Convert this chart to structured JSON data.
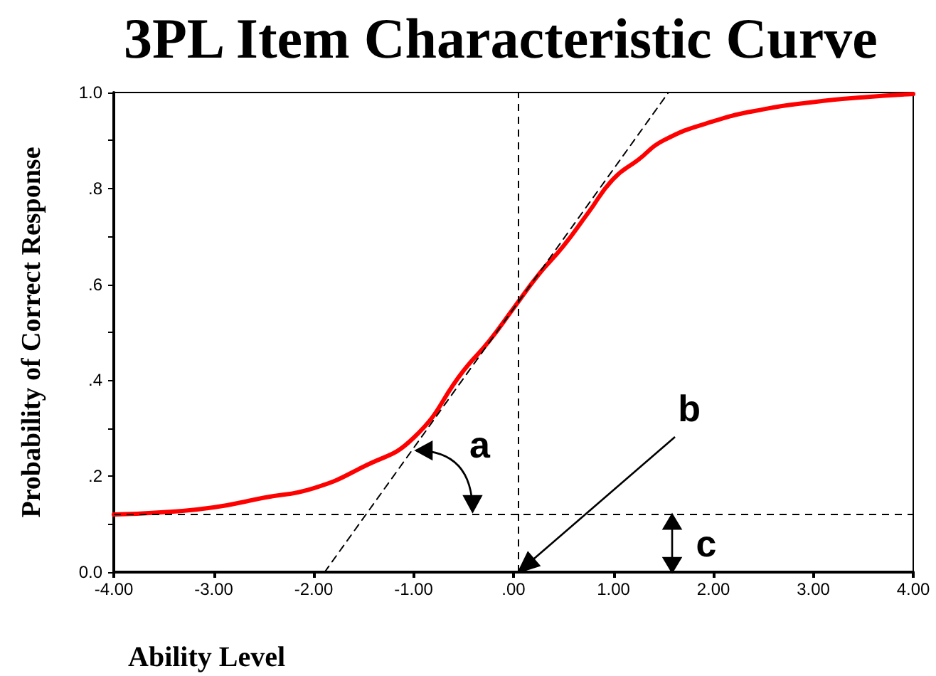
{
  "chart_data": {
    "type": "line",
    "title": "3PL Item Characteristic Curve",
    "xlabel": "Ability Level",
    "ylabel": "Probability of Correct Response",
    "series": [
      {
        "type": "line",
        "color": "#ff0000",
        "x": [
          -4,
          -3.5,
          -3,
          -2.5,
          -2,
          -1.5,
          -1,
          -0.5,
          -0.25,
          0,
          0.25,
          0.5,
          0.75,
          1,
          1.25,
          1.5,
          2,
          2.5,
          3,
          3.5,
          4
        ],
        "values": [
          0.12,
          0.125,
          0.135,
          0.155,
          0.175,
          0.22,
          0.28,
          0.42,
          0.48,
          0.55,
          0.62,
          0.68,
          0.75,
          0.82,
          0.86,
          0.9,
          0.94,
          0.965,
          0.98,
          0.99,
          0.997
        ]
      },
      {
        "type": "line",
        "color": "#000000",
        "line_style": "dashed",
        "x": [
          -1.89,
          1.55
        ],
        "values": [
          0,
          1
        ]
      }
    ],
    "xlim": [
      -4,
      4
    ],
    "ylim": [
      0,
      1
    ],
    "xticks": [
      {
        "value": -4,
        "label": "-4.00"
      },
      {
        "value": -3,
        "label": "-3.00"
      },
      {
        "value": -2,
        "label": "-2.00"
      },
      {
        "value": -1,
        "label": "-1.00"
      },
      {
        "value": 0,
        "label": ".00"
      },
      {
        "value": 1,
        "label": "1.00"
      },
      {
        "value": 2,
        "label": "2.00"
      },
      {
        "value": 3,
        "label": "3.00"
      },
      {
        "value": 4,
        "label": "4.00"
      }
    ],
    "yticks": [
      {
        "value": 0,
        "label": "0.0"
      },
      {
        "value": 0.1,
        "label": null
      },
      {
        "value": 0.2,
        "label": ".2"
      },
      {
        "value": 0.3,
        "label": null
      },
      {
        "value": 0.4,
        "label": ".4"
      },
      {
        "value": 0.5,
        "label": null
      },
      {
        "value": 0.6,
        "label": ".6"
      },
      {
        "value": 0.7,
        "label": null
      },
      {
        "value": 0.8,
        "label": ".8"
      },
      {
        "value": 0.9,
        "label": null
      },
      {
        "value": 1,
        "label": "1.0"
      }
    ],
    "ref_lines": [
      {
        "axis": "y",
        "value": 0.12,
        "line_style": "dashed",
        "color": "#000000"
      },
      {
        "axis": "x",
        "value": 0.05,
        "line_style": "dashed",
        "color": "#000000"
      }
    ],
    "annotations": [
      "a",
      {
        "text": "b",
        "x": 0.05,
        "y": 0
      },
      "c"
    ],
    "grid": false,
    "marker": "none",
    "line_style": "solid"
  }
}
